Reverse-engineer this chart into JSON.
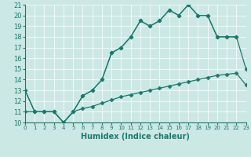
{
  "xlabel": "Humidex (Indice chaleur)",
  "xlim": [
    0,
    23
  ],
  "ylim": [
    10,
    21
  ],
  "xticks": [
    0,
    1,
    2,
    3,
    4,
    5,
    6,
    7,
    8,
    9,
    10,
    11,
    12,
    13,
    14,
    15,
    16,
    17,
    18,
    19,
    20,
    21,
    22,
    23
  ],
  "yticks": [
    10,
    11,
    12,
    13,
    14,
    15,
    16,
    17,
    18,
    19,
    20,
    21
  ],
  "color": "#1a7a6e",
  "bg_color": "#cce8e4",
  "grid_color": "#ffffff",
  "line1_x": [
    0,
    1,
    2,
    3,
    4,
    5,
    6,
    7,
    8,
    9,
    10,
    11,
    12,
    13,
    14,
    15,
    16,
    17,
    18,
    19,
    20,
    21,
    22
  ],
  "line1_y": [
    13,
    11,
    11,
    11,
    10,
    11,
    12.5,
    13,
    14,
    16.5,
    17,
    18,
    19.5,
    19,
    19.5,
    20.5,
    20,
    21,
    20,
    20,
    18,
    18,
    18
  ],
  "line2_x": [
    0,
    1,
    2,
    3,
    4,
    5,
    6,
    7,
    8,
    9,
    10,
    11,
    12,
    13,
    14,
    15,
    16,
    17,
    18,
    19,
    20,
    21,
    22,
    23
  ],
  "line2_y": [
    13,
    11,
    11,
    11,
    10,
    11,
    12.5,
    13,
    14,
    16.5,
    17,
    18,
    19.5,
    19,
    19.5,
    20.5,
    20,
    21,
    20,
    20,
    18,
    18,
    18,
    15
  ],
  "line3_x": [
    0,
    1,
    2,
    3,
    4,
    5,
    6,
    7,
    8,
    9,
    10,
    11,
    12,
    13,
    14,
    15,
    16,
    17,
    18,
    19,
    20,
    21,
    22,
    23
  ],
  "line3_y": [
    11,
    11,
    11,
    11,
    10,
    11,
    11.3,
    11.5,
    11.8,
    12.1,
    12.4,
    12.6,
    12.8,
    13.0,
    13.2,
    13.4,
    13.6,
    13.8,
    14.0,
    14.2,
    14.4,
    14.5,
    14.6,
    13.5
  ],
  "markersize": 2.5,
  "linewidth": 0.9,
  "xlabel_fontsize": 7,
  "xtick_fontsize": 5,
  "ytick_fontsize": 6
}
